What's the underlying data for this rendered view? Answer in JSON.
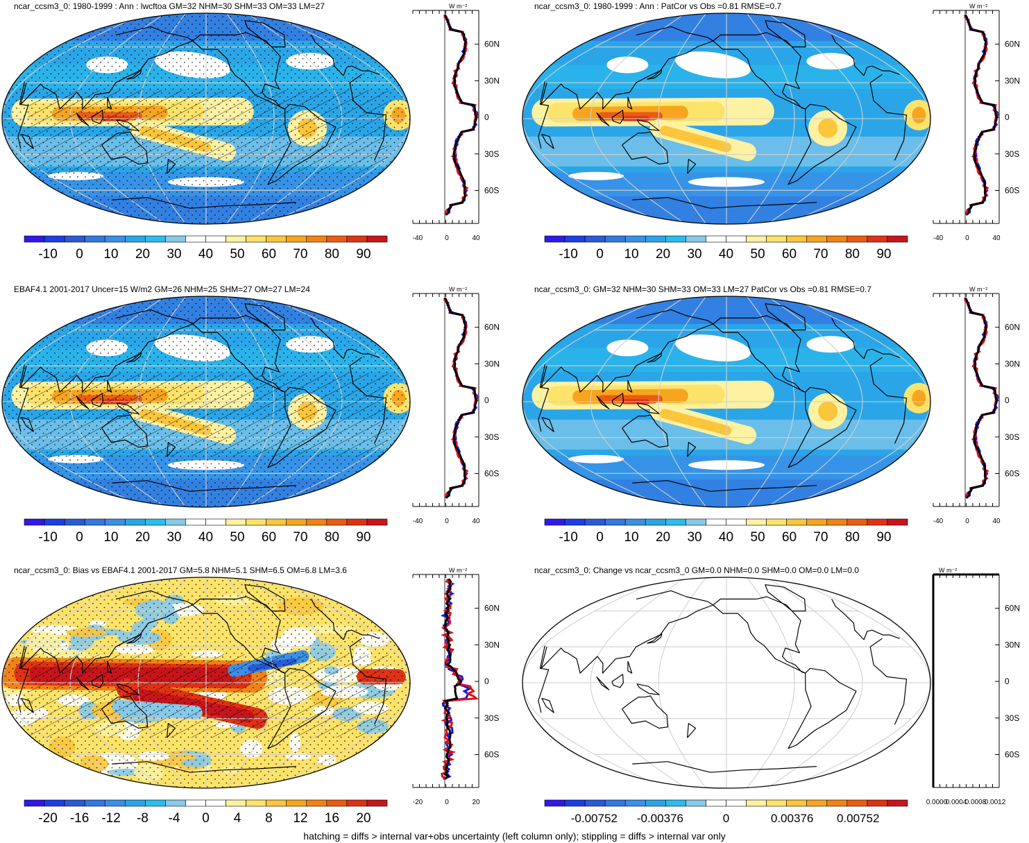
{
  "footnote": "hatching = diffs > internal var+obs uncertainty (left column only); stippling = diffs > internal var only",
  "unit_label": "W m⁻²",
  "lat_ticks": [
    "60N",
    "30N",
    "0",
    "30S",
    "60S"
  ],
  "colors": {
    "scale_main": [
      "#3019e8",
      "#1d3ee6",
      "#2a5ad8",
      "#3477df",
      "#3a8fe6",
      "#2aa6e8",
      "#2bbdeb",
      "#86c9e9",
      "#ffffff",
      "#ffffff",
      "#fdf1a2",
      "#fde36a",
      "#fbc53c",
      "#f7a51f",
      "#f38215",
      "#ea5c14",
      "#df3214",
      "#c8141b"
    ],
    "ocean_base": "#8dc3eb",
    "land_line": "#000000"
  },
  "panels": [
    {
      "id": "p1",
      "title": "ncar_ccsm3_0: 1980-1999 : Ann : lwcftoa GM=32 NHM=30 SHM=33 OM=33 LM=27",
      "colorbar_labels": [
        "-10",
        "0",
        "10",
        "20",
        "30",
        "40",
        "50",
        "60",
        "70",
        "80",
        "90"
      ],
      "profile_ticks": [
        "-40",
        "0",
        "40"
      ],
      "hatched": true,
      "stippled": true,
      "mode": "main"
    },
    {
      "id": "p2",
      "title": "ncar_ccsm3_0: 1980-1999 : Ann : PatCor vs Obs =0.81 RMSE=0.7",
      "colorbar_labels": [
        "-10",
        "0",
        "10",
        "20",
        "30",
        "40",
        "50",
        "60",
        "70",
        "80",
        "90"
      ],
      "profile_ticks": [
        "-40",
        "0",
        "40"
      ],
      "hatched": false,
      "stippled": false,
      "mode": "main"
    },
    {
      "id": "p3",
      "title": "EBAF4.1 2001-2017 Uncer=15 W/m2 GM=26 NHM=25 SHM=27 OM=27 LM=24",
      "colorbar_labels": [
        "-10",
        "0",
        "10",
        "20",
        "30",
        "40",
        "50",
        "60",
        "70",
        "80",
        "90"
      ],
      "profile_ticks": [
        "-40",
        "0",
        "40"
      ],
      "hatched": true,
      "stippled": true,
      "mode": "main"
    },
    {
      "id": "p4",
      "title": "ncar_ccsm3_0: GM=32 NHM=30 SHM=33 OM=33 LM=27 PatCor vs Obs =0.81 RMSE=0.7",
      "colorbar_labels": [
        "-10",
        "0",
        "10",
        "20",
        "30",
        "40",
        "50",
        "60",
        "70",
        "80",
        "90"
      ],
      "profile_ticks": [
        "-40",
        "0",
        "40"
      ],
      "hatched": false,
      "stippled": false,
      "mode": "main"
    },
    {
      "id": "p5",
      "title": "ncar_ccsm3_0: Bias vs EBAF4.1 2001-2017 GM=5.8 NHM=5.1 SHM=6.5 OM=6.8 LM=3.6",
      "colorbar_labels": [
        "-20",
        "-16",
        "-12",
        "-8",
        "-4",
        "0",
        "4",
        "8",
        "12",
        "16",
        "20"
      ],
      "profile_ticks": [
        "-20",
        "0",
        "20"
      ],
      "hatched": true,
      "stippled": true,
      "mode": "bias"
    },
    {
      "id": "p6",
      "title": "ncar_ccsm3_0: Change vs ncar_ccsm3_0 GM=0.0 NHM=0.0 SHM=0.0 OM=0.0 LM=0.0",
      "colorbar_labels": [
        "-0.00752",
        "-0.00376",
        "0",
        "0.00376",
        "0.00752"
      ],
      "profile_ticks": [
        "0.0000",
        "0.0004",
        "0.0008",
        "0.0012"
      ],
      "hatched": false,
      "stippled": false,
      "mode": "empty"
    }
  ]
}
